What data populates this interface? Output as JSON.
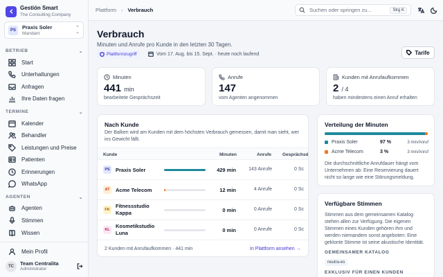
{
  "sidebar": {
    "brand": {
      "name": "Gestión Smart",
      "sub": "The Consulting Company"
    },
    "practice": {
      "initials": "PS",
      "name": "Praxis Soler",
      "sub": "Mandant"
    },
    "sections": {
      "betrieb": {
        "label": "BETRIEB",
        "items": [
          "Start",
          "Unterhaltungen",
          "Anfragen",
          "Ihre Daten fragen"
        ]
      },
      "termine": {
        "label": "TERMINE",
        "items": [
          "Kalender",
          "Behandler",
          "Leistungen und Preise",
          "Patienten",
          "Erinnerungen",
          "WhatsApp"
        ]
      },
      "agenten": {
        "label": "AGENTEN",
        "items": [
          "Agenten",
          "Stimmen",
          "Wissen"
        ]
      }
    },
    "profile": "Mein Profil",
    "team": {
      "initials": "TC",
      "name": "Team Centralita",
      "role": "Administrator"
    }
  },
  "topbar": {
    "breadcrumb": [
      "Plattform",
      "Verbrauch"
    ],
    "search_placeholder": "Suchen oder springen zu...",
    "shortcut": "Strg K"
  },
  "page": {
    "title": "Verbrauch",
    "subtitle": "Minuten und Anrufe pro Kunde in den letzten 30 Tagen.",
    "chip": "Plattformzugriff",
    "range": "Vom 17. Aug. bis 15. Sept. · heute noch laufend",
    "tarife": "Tarife"
  },
  "stats": [
    {
      "label": "Minuten",
      "value": "441",
      "unit": "min",
      "sub": "bearbeitete Gesprächszeit"
    },
    {
      "label": "Anrufe",
      "value": "147",
      "unit": "",
      "sub": "vom Agenten angenommen"
    },
    {
      "label": "Kunden mit Anrufaufkommen",
      "value": "2",
      "unit": "/ 4",
      "sub": "haben mindestens einen Anruf erhalten"
    }
  ],
  "customers": {
    "title": "Nach Kunde",
    "desc": "Der Balken wird am Kunden mit dem höchsten Verbrauch gemessen, damit man sieht, wer ins Gewicht fällt.",
    "columns": [
      "Kunde",
      "Minuten",
      "Anrufe",
      "Gesprächsd"
    ],
    "rows": [
      {
        "initials": "PS",
        "name": "Praxis Soler",
        "minutes": "429 min",
        "calls": "143 Anrufe",
        "talk": "0 Sc",
        "share": 1.0
      },
      {
        "initials": "AT",
        "name": "Acme Telecom",
        "minutes": "12 min",
        "calls": "4 Anrufe",
        "talk": "0 Sc",
        "share": 0.03
      },
      {
        "initials": "FK",
        "name": "Fitnessstudio Kappa",
        "minutes": "0 min",
        "calls": "0 Anrufe",
        "talk": "0 Sc",
        "share": 0
      },
      {
        "initials": "KL",
        "name": "Kosmetikstudio Luna",
        "minutes": "0 min",
        "calls": "0 Anrufe",
        "talk": "0 Sc",
        "share": 0
      }
    ],
    "footer": "2 Kunden mit Anrufaufkommen · 441 min",
    "link": "In Plattform ansehen →"
  },
  "distribution": {
    "title": "Verteilung der Minuten",
    "share": 0.97,
    "colors": {
      "praxis": "#1e8a9c",
      "acme": "#f97316"
    },
    "items": [
      {
        "name": "Praxis Soler",
        "pct": "97 %",
        "rate": "3 min/Anruf"
      },
      {
        "name": "Acme Telecom",
        "pct": "3 %",
        "rate": "3 min/Anruf"
      }
    ],
    "note": "Die durchschnittliche Anrufdauer hängt vom Unternehmen ab: Eine Reservierung dauert nicht so lange wie eine Störungsmeldung."
  },
  "voices": {
    "title": "Verfügbare Stimmen",
    "desc": "Stimmen aus dem gemeinsamen Katalog stehen allen zur Verfügung. Die eigenen Stimmen eines Kunden gehören ihm und werden niemandem sonst angeboten: Eine geklonte Stimme ist seine akustische Identität.",
    "shared_label": "GEMEINSAMER KATALOG",
    "shared_tag": "neutra-es",
    "exclusive_label": "EXKLUSIV FÜR EINEN KUNDEN"
  }
}
